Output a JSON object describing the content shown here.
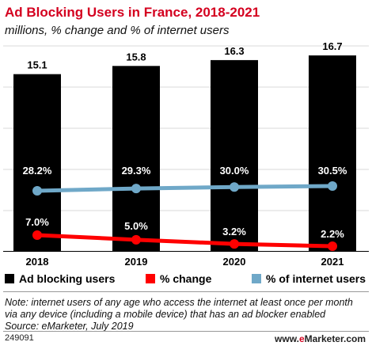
{
  "title": "Ad Blocking Users in France, 2018-2021",
  "subtitle": "millions, % change and % of internet users",
  "colors": {
    "bars": "#000000",
    "pct_change": "#ff0000",
    "pct_internet": "#6fa8c8",
    "title": "#d4001f"
  },
  "chart_data": {
    "type": "bar",
    "categories": [
      "2018",
      "2019",
      "2020",
      "2021"
    ],
    "series": [
      {
        "name": "Ad blocking users",
        "type": "bar",
        "values": [
          15.1,
          15.8,
          16.3,
          16.7
        ],
        "labels": [
          "15.1",
          "15.8",
          "16.3",
          "16.7"
        ]
      },
      {
        "name": "% change",
        "type": "line",
        "values": [
          7.0,
          5.0,
          3.2,
          2.2
        ],
        "labels": [
          "7.0%",
          "5.0%",
          "3.2%",
          "2.2%"
        ]
      },
      {
        "name": "% of internet users",
        "type": "line",
        "values": [
          28.2,
          29.3,
          30.0,
          30.5
        ],
        "labels": [
          "28.2%",
          "29.3%",
          "30.0%",
          "30.5%"
        ]
      }
    ],
    "grid": true,
    "legend_position": "bottom"
  },
  "legend": {
    "bars_label": "Ad blocking users",
    "change_label": "% change",
    "internet_label": "% of internet users"
  },
  "note": "Note: internet users of any age who access the internet at least once per month via any device (including a mobile device) that has an ad blocker enabled",
  "source": "Source: eMarketer, July 2019",
  "footer": {
    "id": "249091",
    "brand_prefix": "www.",
    "brand_e": "e",
    "brand_suffix": "Marketer.com"
  }
}
